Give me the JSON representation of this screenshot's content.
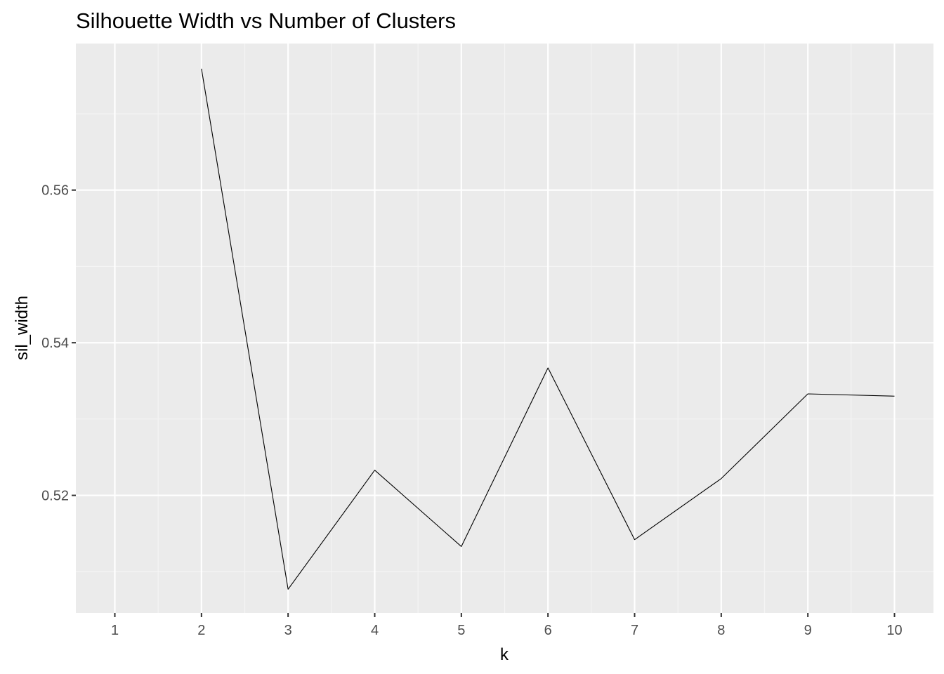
{
  "chart_data": {
    "type": "line",
    "title": "Silhouette Width vs Number of Clusters",
    "xlabel": "k",
    "ylabel": "sil_width",
    "x": [
      1,
      2,
      3,
      4,
      5,
      6,
      7,
      8,
      9,
      10
    ],
    "x_tick_labels": [
      "1",
      "2",
      "3",
      "4",
      "5",
      "6",
      "7",
      "8",
      "9",
      "10"
    ],
    "xlim": [
      0.55,
      10.45
    ],
    "ylim": [
      0.5046,
      0.5792
    ],
    "y_ticks": [
      0.52,
      0.54,
      0.56
    ],
    "y_tick_labels": [
      "0.52",
      "0.54",
      "0.56"
    ],
    "y_minor_ticks": [
      0.51,
      0.53,
      0.55,
      0.57
    ],
    "grid": true,
    "legend": "none",
    "series": [
      {
        "x": [
          2,
          3,
          4,
          5,
          6,
          7,
          8,
          9,
          10
        ],
        "values": [
          0.5759,
          0.5077,
          0.5233,
          0.5133,
          0.5367,
          0.5142,
          0.5222,
          0.5333,
          0.533
        ],
        "color": "#000000"
      }
    ],
    "colors": {
      "panel_background": "#EBEBEB",
      "grid_major": "#FFFFFF",
      "grid_minor": "#F5F5F5",
      "tick": "#333333",
      "tick_label": "#4D4D4D",
      "text": "#000000"
    }
  }
}
